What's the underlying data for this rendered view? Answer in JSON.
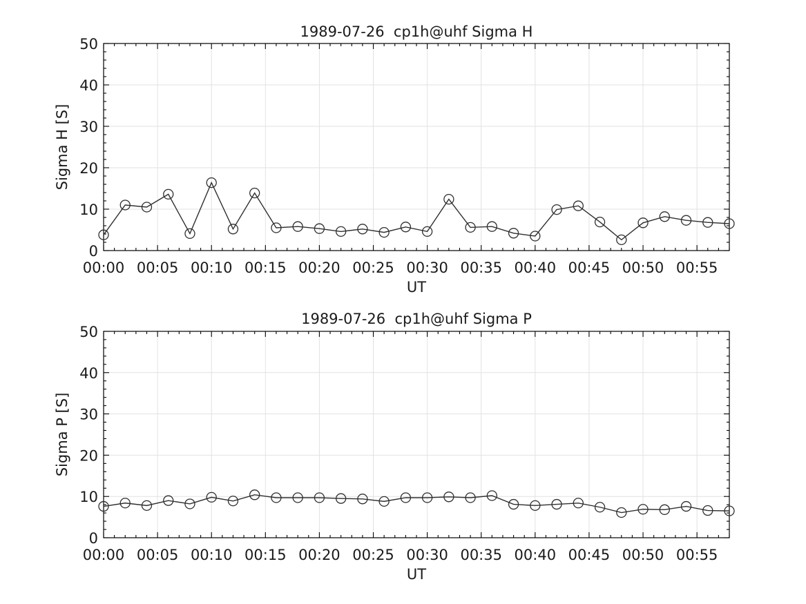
{
  "figure": {
    "background": "#ffffff"
  },
  "chart_data": [
    {
      "type": "line",
      "title": "1989-07-26  cp1h@uhf Sigma H",
      "xlabel": "UT",
      "ylabel": "Sigma H [S]",
      "ylim": [
        0,
        50
      ],
      "yticks": [
        0,
        10,
        20,
        30,
        40,
        50
      ],
      "y_minor_step": 2,
      "xlim_minutes": [
        0,
        58
      ],
      "x_minor_step_minutes": 1,
      "x_major_tick_minutes": [
        0,
        5,
        10,
        15,
        20,
        25,
        30,
        35,
        40,
        45,
        50,
        55
      ],
      "x_major_tick_labels": [
        "00:00",
        "00:05",
        "00:10",
        "00:15",
        "00:20",
        "00:25",
        "00:30",
        "00:35",
        "00:40",
        "00:45",
        "00:50",
        "00:55"
      ],
      "x": [
        "00:00",
        "00:02",
        "00:04",
        "00:06",
        "00:08",
        "00:10",
        "00:12",
        "00:14",
        "00:16",
        "00:18",
        "00:20",
        "00:22",
        "00:24",
        "00:26",
        "00:28",
        "00:30",
        "00:32",
        "00:34",
        "00:36",
        "00:38",
        "00:40",
        "00:42",
        "00:44",
        "00:46",
        "00:48",
        "00:50",
        "00:52",
        "00:54",
        "00:56",
        "00:58"
      ],
      "x_minutes": [
        0,
        2,
        4,
        6,
        8,
        10,
        12,
        14,
        16,
        18,
        20,
        22,
        24,
        26,
        28,
        30,
        32,
        34,
        36,
        38,
        40,
        42,
        44,
        46,
        48,
        50,
        52,
        54,
        56,
        58
      ],
      "values": [
        3.8,
        11.0,
        10.5,
        13.6,
        4.1,
        16.4,
        5.2,
        13.9,
        5.5,
        5.8,
        5.3,
        4.6,
        5.2,
        4.4,
        5.7,
        4.6,
        12.4,
        5.6,
        5.8,
        4.2,
        3.5,
        9.9,
        10.8,
        6.9,
        2.6,
        6.7,
        8.2,
        7.3,
        6.8,
        6.5
      ],
      "marker": "circle",
      "grid": true,
      "legend": null,
      "line_color": "#2e2e2e",
      "grid_color": "#e2e2e2",
      "axis_color": "#000000",
      "text_color": "#1a1a1a"
    },
    {
      "type": "line",
      "title": "1989-07-26  cp1h@uhf Sigma P",
      "xlabel": "UT",
      "ylabel": "Sigma P [S]",
      "ylim": [
        0,
        50
      ],
      "yticks": [
        0,
        10,
        20,
        30,
        40,
        50
      ],
      "y_minor_step": 2,
      "xlim_minutes": [
        0,
        58
      ],
      "x_minor_step_minutes": 1,
      "x_major_tick_minutes": [
        0,
        5,
        10,
        15,
        20,
        25,
        30,
        35,
        40,
        45,
        50,
        55
      ],
      "x_major_tick_labels": [
        "00:00",
        "00:05",
        "00:10",
        "00:15",
        "00:20",
        "00:25",
        "00:30",
        "00:35",
        "00:40",
        "00:45",
        "00:50",
        "00:55"
      ],
      "x": [
        "00:00",
        "00:02",
        "00:04",
        "00:06",
        "00:08",
        "00:10",
        "00:12",
        "00:14",
        "00:16",
        "00:18",
        "00:20",
        "00:22",
        "00:24",
        "00:26",
        "00:28",
        "00:30",
        "00:32",
        "00:34",
        "00:36",
        "00:38",
        "00:40",
        "00:42",
        "00:44",
        "00:46",
        "00:48",
        "00:50",
        "00:52",
        "00:54",
        "00:56",
        "00:58"
      ],
      "x_minutes": [
        0,
        2,
        4,
        6,
        8,
        10,
        12,
        14,
        16,
        18,
        20,
        22,
        24,
        26,
        28,
        30,
        32,
        34,
        36,
        38,
        40,
        42,
        44,
        46,
        48,
        50,
        52,
        54,
        56,
        58
      ],
      "values": [
        7.6,
        8.4,
        7.8,
        9.0,
        8.2,
        9.8,
        8.9,
        10.4,
        9.7,
        9.7,
        9.7,
        9.5,
        9.4,
        8.8,
        9.7,
        9.7,
        9.9,
        9.7,
        10.2,
        8.1,
        7.8,
        8.1,
        8.4,
        7.4,
        6.1,
        6.9,
        6.8,
        7.6,
        6.6,
        6.5
      ],
      "marker": "circle",
      "grid": true,
      "legend": null,
      "line_color": "#2e2e2e",
      "grid_color": "#e2e2e2",
      "axis_color": "#000000",
      "text_color": "#1a1a1a"
    }
  ]
}
